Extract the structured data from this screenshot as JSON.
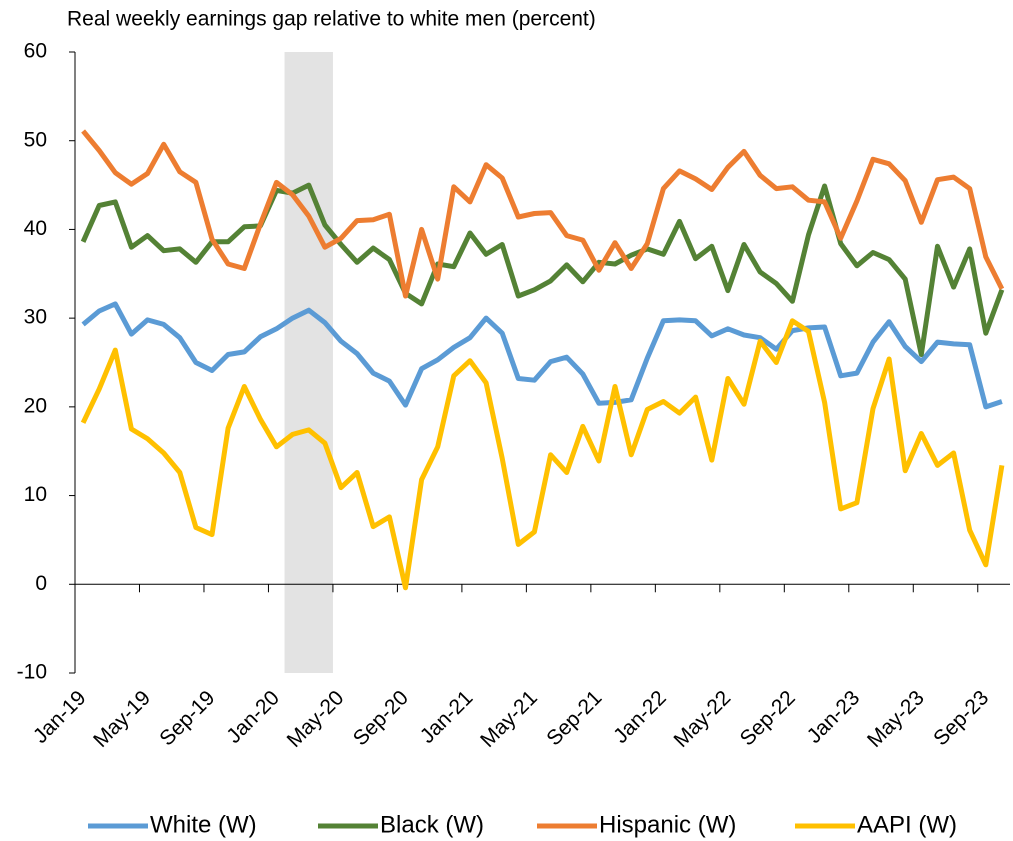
{
  "chart_data": {
    "type": "line",
    "title": "Real weekly earnings gap relative to white men (percent)",
    "categories": [
      "Jan-19",
      null,
      null,
      null,
      "May-19",
      null,
      null,
      null,
      "Sep-19",
      null,
      null,
      null,
      "Jan-20",
      null,
      null,
      null,
      "May-20",
      null,
      null,
      null,
      "Sep-20",
      null,
      null,
      null,
      "Jan-21",
      null,
      null,
      null,
      "May-21",
      null,
      null,
      null,
      "Sep-21",
      null,
      null,
      null,
      "Jan-22",
      null,
      null,
      null,
      "May-22",
      null,
      null,
      null,
      "Sep-22",
      null,
      null,
      null,
      "Jan-23",
      null,
      null,
      null,
      "May-23",
      null,
      null,
      null,
      "Sep-23",
      null
    ],
    "series": [
      {
        "name": "White (W)",
        "color": "#5b9bd5",
        "values": [
          29.3,
          30.8,
          31.6,
          28.2,
          29.8,
          29.3,
          27.8,
          25,
          24.1,
          25.9,
          26.2,
          27.9,
          28.8,
          30,
          30.9,
          29.5,
          27.4,
          26,
          23.8,
          22.9,
          20.2,
          24.3,
          25.3,
          26.7,
          27.8,
          30,
          28.3,
          23.2,
          23,
          25.1,
          25.6,
          23.7,
          20.4,
          20.5,
          20.8,
          25.5,
          29.7,
          29.8,
          29.7,
          28,
          28.8,
          28.1,
          27.8,
          26.5,
          28.6,
          28.9,
          29,
          23.5,
          23.8,
          27.3,
          29.6,
          26.8,
          25.1,
          27.3,
          27.1,
          27,
          20,
          20.6
        ]
      },
      {
        "name": "Black (W)",
        "color": "#548235",
        "values": [
          38.6,
          42.7,
          43.1,
          38,
          39.3,
          37.6,
          37.8,
          36.3,
          38.6,
          38.6,
          40.3,
          40.4,
          44.4,
          44.1,
          45,
          40.5,
          38.3,
          36.3,
          37.9,
          36.6,
          32.8,
          31.6,
          36.1,
          35.8,
          39.6,
          37.2,
          38.3,
          32.5,
          33.2,
          34.2,
          36,
          34.1,
          36.3,
          36.1,
          37.1,
          37.8,
          37.2,
          40.9,
          36.7,
          38.1,
          33.1,
          38.3,
          35.2,
          33.9,
          31.9,
          39.4,
          44.9,
          38.4,
          35.9,
          37.4,
          36.6,
          34.4,
          25.9,
          38.1,
          33.5,
          37.8,
          28.3,
          33.2
        ]
      },
      {
        "name": "Hispanic (W)",
        "color": "#ed7d31",
        "values": [
          51.1,
          48.9,
          46.4,
          45.1,
          46.3,
          49.6,
          46.5,
          45.3,
          38.9,
          36.1,
          35.6,
          40.6,
          45.3,
          43.9,
          41.5,
          38,
          39,
          41,
          41.1,
          41.7,
          32.5,
          40,
          34.4,
          44.8,
          43.1,
          47.3,
          45.8,
          41.4,
          41.8,
          41.9,
          39.3,
          38.8,
          35.4,
          38.5,
          35.6,
          38.4,
          44.6,
          46.6,
          45.7,
          44.5,
          47,
          48.8,
          46.1,
          44.6,
          44.8,
          43.3,
          43.1,
          39,
          43.2,
          47.9,
          47.4,
          45.5,
          40.8,
          45.6,
          45.9,
          44.6,
          36.9,
          33.3
        ]
      },
      {
        "name": "AAPI (W)",
        "color": "#ffc000",
        "values": [
          18.2,
          22,
          26.4,
          17.5,
          16.4,
          14.8,
          12.6,
          6.4,
          5.6,
          17.6,
          22.3,
          18.6,
          15.5,
          16.9,
          17.4,
          15.9,
          10.9,
          12.6,
          6.5,
          7.6,
          -0.4,
          11.8,
          15.5,
          23.5,
          25.2,
          22.7,
          14.2,
          4.5,
          5.9,
          14.6,
          12.6,
          17.8,
          13.9,
          22.3,
          14.6,
          19.7,
          20.6,
          19.3,
          21.1,
          14,
          23.2,
          20.3,
          27.4,
          25,
          29.7,
          28.5,
          20.5,
          8.5,
          9.2,
          19.8,
          25.4,
          12.8,
          17,
          13.4,
          14.8,
          6.1,
          2.2,
          13.4
        ]
      }
    ],
    "ylim": [
      -10,
      60
    ],
    "yticks": [
      -10,
      0,
      10,
      20,
      30,
      40,
      50,
      60
    ],
    "grid": false,
    "legend": "bottom"
  }
}
